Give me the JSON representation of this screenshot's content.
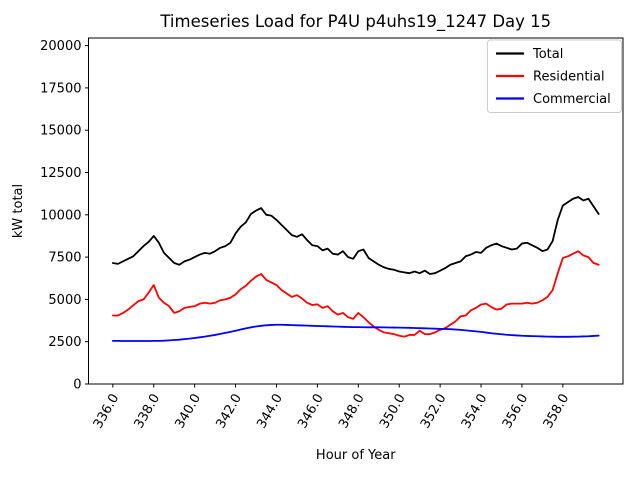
{
  "chart_data": {
    "type": "line",
    "title": "Timeseries Load for P4U p4uhs19_1247  Day 15",
    "xlabel": "Hour of Year",
    "ylabel": "kW total",
    "legend_position": "upper right",
    "grid": false,
    "xlim": [
      334.81,
      360.94
    ],
    "ylim": [
      0,
      20450
    ],
    "xticks": {
      "values": [
        336,
        338,
        340,
        342,
        344,
        346,
        348,
        350,
        352,
        354,
        356,
        358
      ],
      "labels": [
        "336.0",
        "338.0",
        "340.0",
        "342.0",
        "344.0",
        "346.0",
        "348.0",
        "350.0",
        "352.0",
        "354.0",
        "356.0",
        "358.0"
      ]
    },
    "yticks": {
      "values": [
        0,
        2500,
        5000,
        7500,
        10000,
        12500,
        15000,
        17500,
        20000
      ],
      "labels": [
        "0",
        "2500",
        "5000",
        "7500",
        "10000",
        "12500",
        "15000",
        "17500",
        "20000"
      ]
    },
    "x": [
      336.0,
      336.25,
      336.5,
      336.75,
      337.0,
      337.25,
      337.5,
      337.75,
      338.0,
      338.25,
      338.5,
      338.75,
      339.0,
      339.25,
      339.5,
      339.75,
      340.0,
      340.25,
      340.5,
      340.75,
      341.0,
      341.25,
      341.5,
      341.75,
      342.0,
      342.25,
      342.5,
      342.75,
      343.0,
      343.25,
      343.5,
      343.75,
      344.0,
      344.25,
      344.5,
      344.75,
      345.0,
      345.25,
      345.5,
      345.75,
      346.0,
      346.25,
      346.5,
      346.75,
      347.0,
      347.25,
      347.5,
      347.75,
      348.0,
      348.25,
      348.5,
      348.75,
      349.0,
      349.25,
      349.5,
      349.75,
      350.0,
      350.25,
      350.5,
      350.75,
      351.0,
      351.25,
      351.5,
      351.75,
      352.0,
      352.25,
      352.5,
      352.75,
      353.0,
      353.25,
      353.5,
      353.75,
      354.0,
      354.25,
      354.5,
      354.75,
      355.0,
      355.25,
      355.5,
      355.75,
      356.0,
      356.25,
      356.5,
      356.75,
      357.0,
      357.25,
      357.5,
      357.75,
      358.0,
      358.25,
      358.5,
      358.75,
      359.0,
      359.25,
      359.5,
      359.75
    ],
    "series": [
      {
        "name": "Total",
        "color": "#000000",
        "values": [
          7150,
          7100,
          7250,
          7400,
          7550,
          7850,
          8150,
          8400,
          8750,
          8350,
          7750,
          7450,
          7150,
          7050,
          7250,
          7350,
          7500,
          7650,
          7750,
          7700,
          7850,
          8050,
          8150,
          8350,
          8900,
          9300,
          9550,
          10050,
          10250,
          10400,
          10000,
          9950,
          9700,
          9400,
          9100,
          8800,
          8700,
          8850,
          8500,
          8200,
          8150,
          7900,
          8000,
          7700,
          7650,
          7850,
          7500,
          7400,
          7850,
          7950,
          7450,
          7250,
          7050,
          6900,
          6800,
          6750,
          6650,
          6600,
          6550,
          6650,
          6550,
          6700,
          6500,
          6550,
          6700,
          6850,
          7050,
          7150,
          7250,
          7550,
          7650,
          7800,
          7750,
          8050,
          8200,
          8300,
          8150,
          8050,
          7950,
          8000,
          8300,
          8350,
          8200,
          8050,
          7850,
          7950,
          8450,
          9700,
          10550,
          10750,
          10950,
          11050,
          10850,
          10950,
          10500,
          10050
        ]
      },
      {
        "name": "Residential",
        "color": "#ff0000",
        "values": [
          4050,
          4050,
          4200,
          4400,
          4650,
          4900,
          5000,
          5400,
          5850,
          5100,
          4800,
          4600,
          4200,
          4300,
          4500,
          4550,
          4600,
          4750,
          4800,
          4750,
          4800,
          4950,
          5000,
          5100,
          5300,
          5600,
          5800,
          6100,
          6350,
          6500,
          6150,
          6000,
          5850,
          5550,
          5350,
          5150,
          5250,
          5050,
          4800,
          4670,
          4710,
          4500,
          4600,
          4300,
          4100,
          4200,
          3950,
          3850,
          4200,
          3950,
          3650,
          3400,
          3200,
          3050,
          3000,
          2950,
          2850,
          2800,
          2900,
          2900,
          3150,
          2950,
          2950,
          3050,
          3200,
          3300,
          3500,
          3700,
          4000,
          4050,
          4350,
          4500,
          4700,
          4750,
          4550,
          4400,
          4450,
          4700,
          4750,
          4750,
          4750,
          4800,
          4750,
          4800,
          4950,
          5150,
          5550,
          6550,
          7450,
          7550,
          7700,
          7850,
          7600,
          7500,
          7150,
          7050
        ]
      },
      {
        "name": "Commercial",
        "color": "#0000ff",
        "values": [
          2550,
          2550,
          2540,
          2540,
          2540,
          2540,
          2540,
          2540,
          2550,
          2550,
          2560,
          2580,
          2600,
          2620,
          2650,
          2680,
          2720,
          2760,
          2800,
          2850,
          2900,
          2960,
          3020,
          3080,
          3150,
          3220,
          3290,
          3350,
          3400,
          3440,
          3470,
          3490,
          3500,
          3500,
          3490,
          3480,
          3470,
          3460,
          3450,
          3440,
          3430,
          3420,
          3410,
          3400,
          3390,
          3380,
          3370,
          3360,
          3360,
          3355,
          3350,
          3350,
          3350,
          3345,
          3340,
          3335,
          3330,
          3325,
          3320,
          3310,
          3300,
          3290,
          3280,
          3270,
          3260,
          3250,
          3240,
          3220,
          3200,
          3170,
          3140,
          3110,
          3080,
          3040,
          3000,
          2970,
          2940,
          2910,
          2890,
          2870,
          2850,
          2840,
          2830,
          2820,
          2810,
          2800,
          2795,
          2790,
          2790,
          2790,
          2795,
          2800,
          2810,
          2820,
          2840,
          2860
        ]
      }
    ]
  }
}
